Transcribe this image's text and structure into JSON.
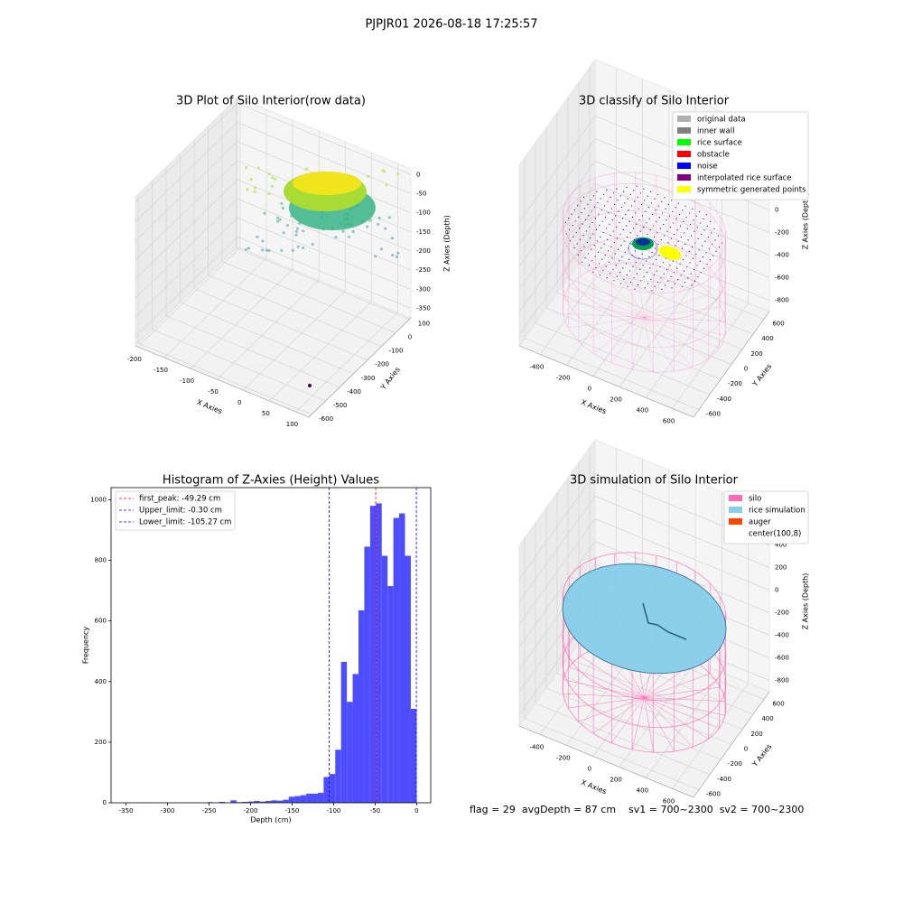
{
  "title": "PJPJR01 2026-08-18 17:25:57",
  "footer": "flag = 29  avgDepth = 87 cm    sv1 = 700~2300  sv2 = 700~2300",
  "chart_data": [
    {
      "type": "scatter3d",
      "title": "3D Plot of Silo Interior(row data)",
      "xlabel": "X Axies",
      "ylabel": "Y Axies",
      "zlabel": "Z Axies (Depth)",
      "xlim": [
        -205,
        125
      ],
      "xticks": [
        -200,
        -150,
        -100,
        -50,
        0,
        50,
        100
      ],
      "ylim": [
        -620,
        110
      ],
      "yticks": [
        -600,
        -500,
        -400,
        -300,
        -200,
        -100,
        0,
        100
      ],
      "zlim": [
        -375,
        15
      ],
      "zticks": [
        -350,
        -300,
        -250,
        -200,
        -150,
        -100,
        -50,
        0
      ]
    },
    {
      "type": "scatter3d",
      "title": "3D classify of Silo Interior",
      "xlabel": "X Axies",
      "ylabel": "Y Axies",
      "zlabel": "Z Axies (Depth)",
      "xlim": [
        -560,
        760
      ],
      "xticks": [
        -400,
        -200,
        0,
        200,
        400,
        600
      ],
      "ylim": [
        -700,
        700
      ],
      "yticks": [
        -600,
        -400,
        -200,
        0,
        200,
        400,
        600
      ],
      "zlim": [
        -900,
        700
      ],
      "zticks": [
        -800,
        -600,
        -400,
        -200,
        0,
        200
      ],
      "legend": [
        {
          "name": "original data",
          "color": "#b0b0b0"
        },
        {
          "name": "inner wall",
          "color": "#808080"
        },
        {
          "name": "rice surface",
          "color": "#00ff00"
        },
        {
          "name": "obstacle",
          "color": "#ff0000"
        },
        {
          "name": "noise",
          "color": "#0000ff"
        },
        {
          "name": "interpolated rice surface",
          "color": "#800080"
        },
        {
          "name": "symmetric generated points",
          "color": "#ffff00"
        }
      ]
    },
    {
      "type": "histogram",
      "title": "Histogram of Z-Axies (Height) Values",
      "xlabel": "Depth (cm)",
      "ylabel": "Frequency",
      "color": "#4d4dff",
      "bins": [
        -350,
        -343,
        -336,
        -329,
        -322,
        -315,
        -308,
        -301,
        -294,
        -287,
        -280,
        -273,
        -266,
        -259,
        -252,
        -245,
        -238,
        -231,
        -224,
        -217,
        -210,
        -203,
        -196,
        -189,
        -182,
        -175,
        -168,
        -161,
        -154,
        -147,
        -140,
        -133,
        -126,
        -119,
        -112,
        -105,
        -98,
        -91,
        -84,
        -77,
        -70,
        -63,
        -56,
        -49,
        -42,
        -35,
        -28,
        -21,
        -14,
        -7,
        0
      ],
      "values": [
        0,
        0,
        0,
        0,
        0,
        0,
        0,
        0,
        0,
        0,
        0,
        0,
        0,
        0,
        2,
        0,
        3,
        0,
        8,
        2,
        3,
        4,
        6,
        4,
        6,
        8,
        7,
        10,
        20,
        22,
        25,
        30,
        30,
        33,
        85,
        95,
        175,
        465,
        333,
        425,
        635,
        845,
        980,
        988,
        815,
        715,
        940,
        955,
        815,
        310
      ],
      "xlim": [
        -368,
        17
      ],
      "xticks": [
        -350,
        -300,
        -250,
        -200,
        -150,
        -100,
        -50,
        0
      ],
      "ylim": [
        0,
        1040
      ],
      "yticks": [
        0,
        200,
        400,
        600,
        800,
        1000
      ],
      "lines": [
        {
          "label": "first_peak: -49.29 cm",
          "value": -49.29,
          "color": "#ff0000"
        },
        {
          "label": "Upper_limit: -0.30 cm",
          "value": -0.3,
          "color": "#0000ff"
        },
        {
          "label": "Lower_limit: -105.27 cm",
          "value": -105.27,
          "color": "#0000ff"
        }
      ]
    },
    {
      "type": "scatter3d",
      "title": "3D simulation of Silo Interior",
      "xlabel": "X Axies",
      "ylabel": "Y Axies",
      "zlabel": "Z Axies (Depth)",
      "xlim": [
        -560,
        760
      ],
      "xticks": [
        -400,
        -200,
        0,
        200,
        400,
        600
      ],
      "ylim": [
        -700,
        700
      ],
      "yticks": [
        -600,
        -400,
        -200,
        0,
        200,
        400,
        600
      ],
      "zlim": [
        -900,
        700
      ],
      "zticks": [
        -800,
        -600,
        -400,
        -200,
        0,
        200,
        400
      ],
      "legend": [
        {
          "name": "silo",
          "color": "#ff69b4"
        },
        {
          "name": "rice simulation",
          "color": "#87ceeb"
        },
        {
          "name": "auger",
          "color": "#ff4500"
        },
        {
          "name": "center(100,8)",
          "color": "#ffffff"
        }
      ]
    }
  ]
}
